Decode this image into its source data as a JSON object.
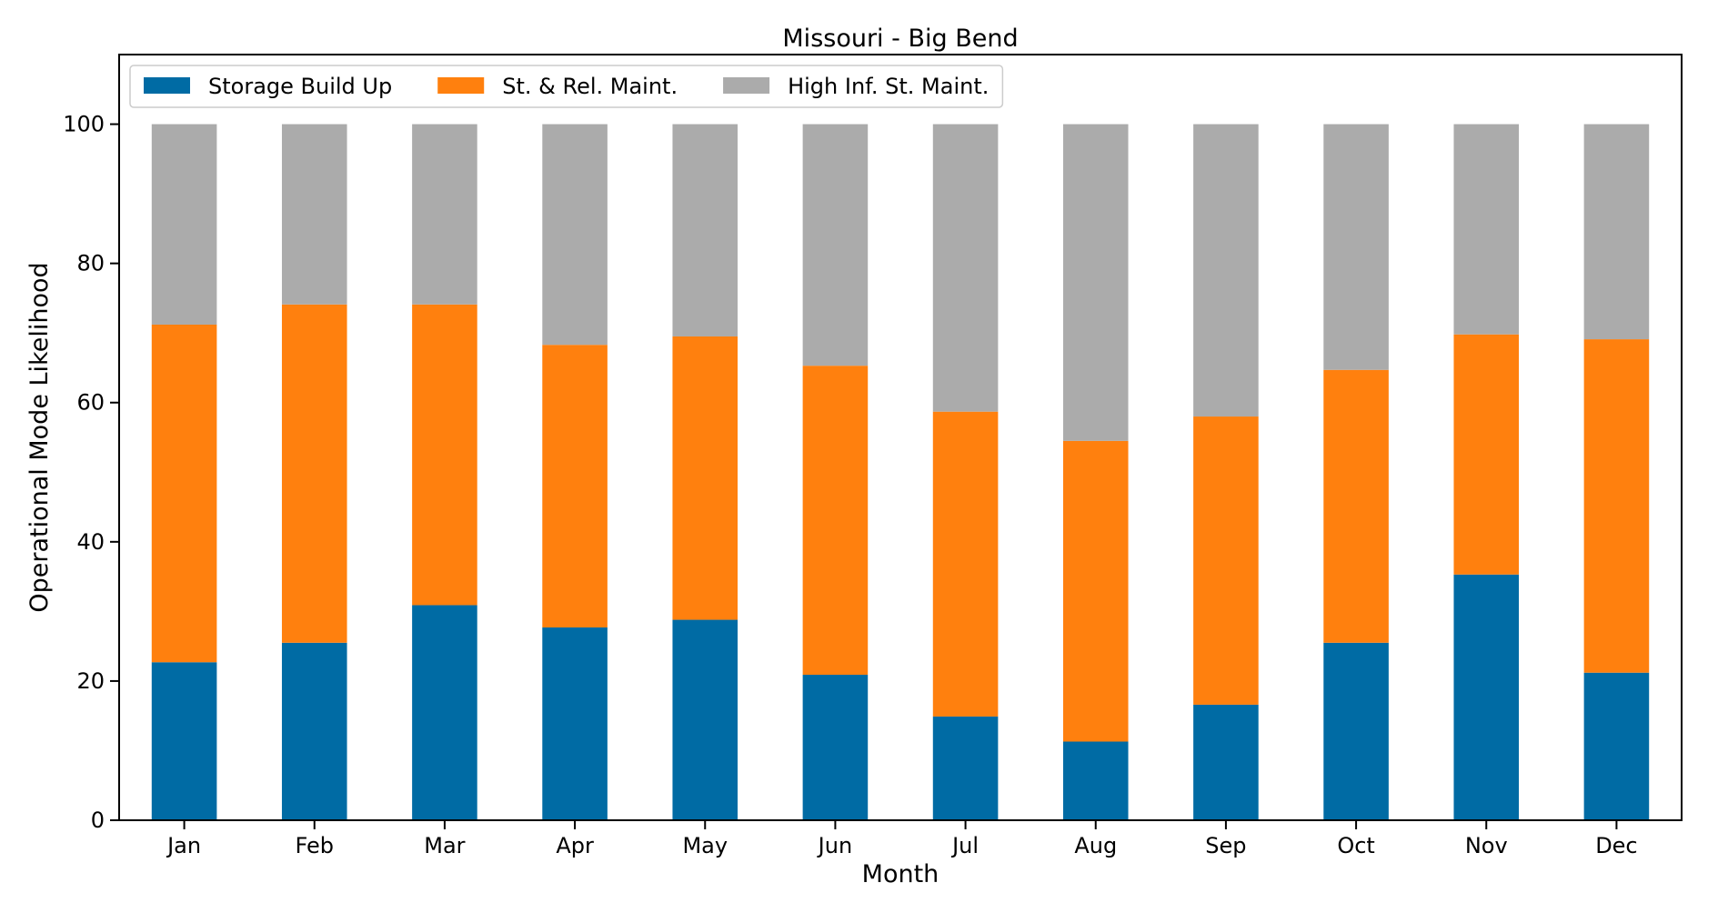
{
  "chart_data": {
    "type": "bar",
    "stacked": true,
    "title": "Missouri - Big Bend",
    "xlabel": "Month",
    "ylabel": "Operational Mode Likelihood",
    "categories": [
      "Jan",
      "Feb",
      "Mar",
      "Apr",
      "May",
      "Jun",
      "Jul",
      "Aug",
      "Sep",
      "Oct",
      "Nov",
      "Dec"
    ],
    "series": [
      {
        "name": "Storage Build Up",
        "color": "#006BA4",
        "values": [
          22.7,
          25.5,
          30.9,
          27.7,
          28.8,
          20.9,
          14.9,
          11.3,
          16.6,
          25.5,
          35.3,
          21.2
        ]
      },
      {
        "name": "St. & Rel. Maint.",
        "color": "#FF800E",
        "values": [
          48.5,
          48.6,
          43.2,
          40.6,
          40.7,
          44.4,
          43.8,
          43.2,
          41.4,
          39.2,
          34.5,
          47.9
        ]
      },
      {
        "name": "High Inf. St. Maint.",
        "color": "#ABABAB",
        "values": [
          28.8,
          25.9,
          25.9,
          31.7,
          30.5,
          34.7,
          41.3,
          45.5,
          42.0,
          35.3,
          30.2,
          30.9
        ]
      }
    ],
    "ylim": [
      0,
      110
    ],
    "yticks": [
      "0",
      "20",
      "40",
      "60",
      "80",
      "100"
    ],
    "grid": false,
    "legend": "top-left"
  }
}
